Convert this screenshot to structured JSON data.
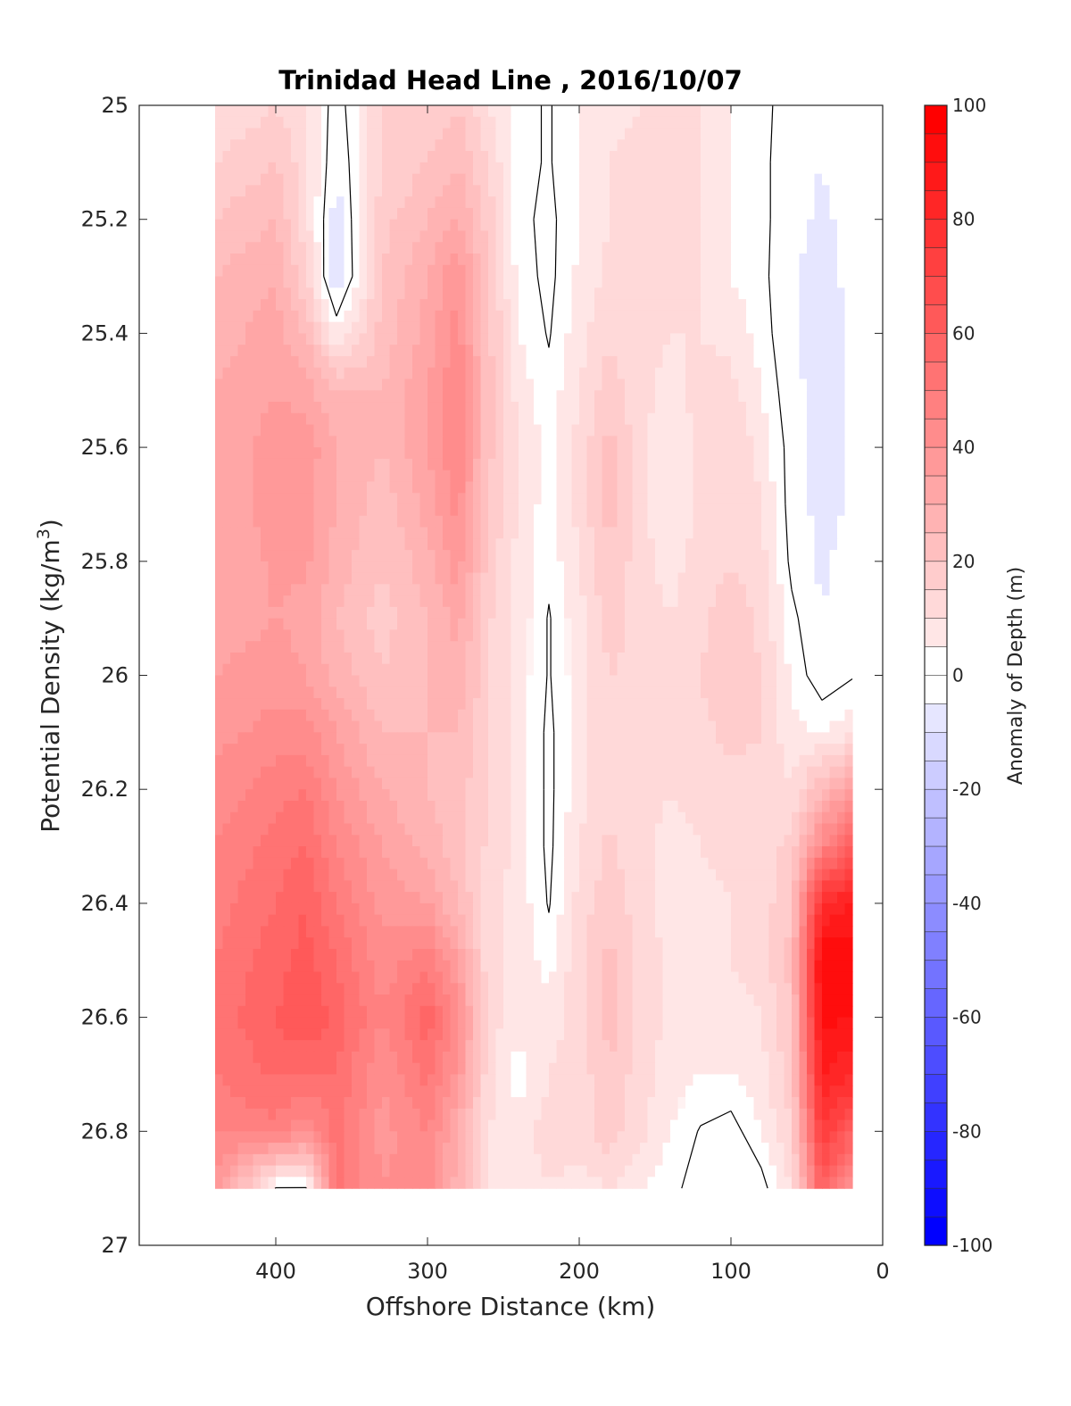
{
  "chart_data": {
    "type": "heatmap",
    "title": "Trinidad Head Line , 2016/10/07",
    "xlabel": "Offshore Distance (km)",
    "ylabel": "Potential Density (kg/m",
    "ylabel_sup": "3",
    "ylabel_close": ")",
    "xlim": [
      490,
      0
    ],
    "ylim": [
      25,
      27
    ],
    "x_reversed": true,
    "y_reversed": true,
    "xticks": [
      400,
      300,
      200,
      100,
      0
    ],
    "yticks": [
      25,
      25.2,
      25.4,
      25.6,
      25.8,
      26,
      26.2,
      26.4,
      26.6,
      26.8,
      27
    ],
    "xtick_labels": [
      "400",
      "300",
      "200",
      "100",
      "0"
    ],
    "ytick_labels": [
      "25",
      "25.2",
      "25.4",
      "25.6",
      "25.8",
      "26",
      "26.2",
      "26.4",
      "26.6",
      "26.8",
      "27"
    ],
    "colorbar": {
      "label": "Anomaly of Depth (m)",
      "range": [
        -100,
        100
      ],
      "step": 5,
      "ticks": [
        100,
        80,
        60,
        40,
        20,
        0,
        -20,
        -40,
        -60,
        -80,
        -100
      ],
      "tick_labels": [
        "100",
        "80",
        "60",
        "40",
        "20",
        "0",
        "-20",
        "-40",
        "-60",
        "-80",
        "-100"
      ],
      "colormap": "blue-white-red"
    },
    "grid": false,
    "data_extent": {
      "x_min": 20,
      "x_max": 440,
      "y_min": 25,
      "y_max": 26.9
    },
    "x": [
      440,
      400,
      380,
      360,
      330,
      300,
      280,
      260,
      240,
      220,
      200,
      180,
      160,
      140,
      120,
      100,
      80,
      60,
      40,
      20
    ],
    "y": [
      25.0,
      25.1,
      25.2,
      25.3,
      25.4,
      25.5,
      25.6,
      25.7,
      25.8,
      25.9,
      26.0,
      26.1,
      26.2,
      26.3,
      26.4,
      26.5,
      26.6,
      26.7,
      26.8,
      26.9
    ],
    "z": [
      [
        10,
        15,
        10,
        -3,
        15,
        15,
        20,
        10,
        2,
        0,
        5,
        8,
        10,
        12,
        10,
        5,
        2,
        -2,
        -3,
        -1
      ],
      [
        15,
        20,
        12,
        -5,
        15,
        20,
        25,
        15,
        2,
        0,
        5,
        10,
        12,
        12,
        10,
        5,
        2,
        -3,
        -5,
        -2
      ],
      [
        20,
        25,
        12,
        -8,
        18,
        25,
        30,
        18,
        2,
        -1,
        5,
        10,
        12,
        12,
        10,
        5,
        2,
        -3,
        -6,
        -3
      ],
      [
        25,
        30,
        15,
        -10,
        20,
        30,
        40,
        20,
        3,
        -1,
        6,
        12,
        12,
        12,
        10,
        5,
        2,
        -4,
        -8,
        -3
      ],
      [
        28,
        32,
        25,
        5,
        22,
        32,
        42,
        22,
        5,
        0,
        8,
        14,
        12,
        10,
        10,
        8,
        3,
        -4,
        -8,
        -4
      ],
      [
        30,
        35,
        32,
        25,
        25,
        35,
        45,
        22,
        8,
        2,
        10,
        18,
        12,
        8,
        12,
        12,
        5,
        -3,
        -8,
        -4
      ],
      [
        30,
        38,
        38,
        30,
        25,
        35,
        45,
        22,
        10,
        3,
        12,
        22,
        12,
        5,
        12,
        15,
        8,
        -2,
        -7,
        -4
      ],
      [
        30,
        38,
        38,
        30,
        22,
        32,
        42,
        20,
        10,
        2,
        12,
        22,
        12,
        5,
        12,
        15,
        10,
        -2,
        -7,
        -4
      ],
      [
        30,
        36,
        36,
        28,
        20,
        28,
        38,
        18,
        8,
        2,
        10,
        20,
        12,
        8,
        12,
        15,
        12,
        -1,
        -6,
        -3
      ],
      [
        32,
        35,
        33,
        25,
        18,
        25,
        32,
        16,
        8,
        0,
        8,
        18,
        12,
        10,
        14,
        18,
        14,
        2,
        -5,
        -2
      ],
      [
        35,
        38,
        35,
        28,
        20,
        25,
        28,
        16,
        8,
        0,
        8,
        15,
        14,
        12,
        15,
        18,
        15,
        4,
        -3,
        0
      ],
      [
        38,
        42,
        42,
        35,
        25,
        25,
        25,
        16,
        8,
        -1,
        8,
        14,
        14,
        12,
        14,
        16,
        15,
        6,
        5,
        8
      ],
      [
        42,
        48,
        50,
        40,
        30,
        25,
        22,
        15,
        8,
        -1,
        8,
        14,
        12,
        10,
        12,
        14,
        14,
        10,
        25,
        35
      ],
      [
        45,
        52,
        55,
        45,
        35,
        28,
        22,
        14,
        8,
        -1,
        10,
        16,
        12,
        8,
        10,
        12,
        14,
        16,
        45,
        60
      ],
      [
        48,
        55,
        60,
        50,
        38,
        35,
        25,
        12,
        8,
        0,
        12,
        18,
        12,
        8,
        8,
        10,
        12,
        20,
        80,
        85
      ],
      [
        50,
        58,
        62,
        55,
        42,
        48,
        35,
        12,
        8,
        3,
        14,
        22,
        14,
        8,
        8,
        10,
        12,
        22,
        95,
        95
      ],
      [
        52,
        60,
        65,
        58,
        45,
        58,
        42,
        12,
        8,
        8,
        12,
        22,
        14,
        8,
        8,
        8,
        10,
        20,
        92,
        90
      ],
      [
        50,
        56,
        55,
        55,
        40,
        52,
        38,
        12,
        2,
        10,
        12,
        20,
        12,
        8,
        5,
        5,
        8,
        18,
        85,
        80
      ],
      [
        45,
        48,
        40,
        52,
        38,
        45,
        30,
        10,
        8,
        12,
        12,
        18,
        12,
        5,
        0,
        -2,
        5,
        15,
        75,
        60
      ],
      [
        40,
        0,
        0,
        52,
        40,
        42,
        28,
        10,
        8,
        10,
        8,
        10,
        5,
        2,
        -2,
        -5,
        -2,
        10,
        60,
        40
      ]
    ]
  }
}
